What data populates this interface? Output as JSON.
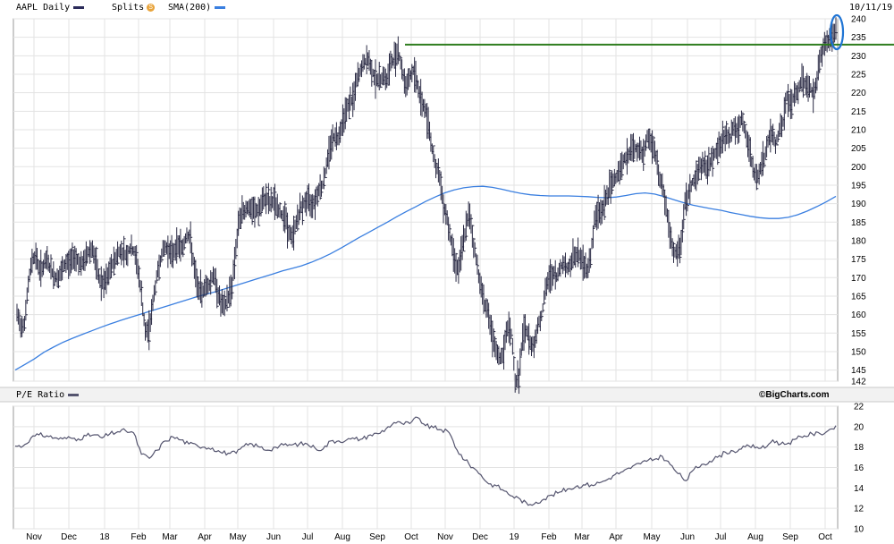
{
  "header": {
    "ticker_label": "AAPL Daily",
    "ticker_color": "#2b2b5a",
    "splits_label": "Splits",
    "splits_icon": "splits-s-icon",
    "sma_label": "SMA(200)",
    "sma_color": "#3a7fe0",
    "date": "10/11/19"
  },
  "lower_panel": {
    "label": "P/E Ratio",
    "color": "#55556f",
    "credit": "©BigCharts.com"
  },
  "chart_data": [
    {
      "type": "ohlc",
      "title": "AAPL Daily",
      "ylim": [
        142,
        240
      ],
      "y_ticks": [
        142,
        145,
        150,
        155,
        160,
        165,
        170,
        175,
        180,
        185,
        190,
        195,
        200,
        205,
        210,
        215,
        220,
        225,
        230,
        235,
        240
      ],
      "grid": true,
      "price_color": "#2a2a44",
      "close": [
        160,
        157,
        158,
        168,
        175,
        176,
        172,
        173,
        175,
        172,
        170,
        170,
        172,
        174,
        174,
        176,
        175,
        173,
        175,
        177,
        178,
        173,
        169,
        168,
        170,
        173,
        175,
        177,
        177,
        176,
        178,
        177,
        173,
        165,
        155,
        156,
        163,
        170,
        175,
        178,
        178,
        176,
        178,
        179,
        178,
        182,
        180,
        172,
        167,
        166,
        168,
        168,
        171,
        167,
        163,
        162,
        165,
        168,
        178,
        186,
        188,
        189,
        188,
        188,
        188,
        190,
        192,
        190,
        191,
        189,
        187,
        187,
        182,
        181,
        185,
        188,
        190,
        191,
        190,
        191,
        194,
        195,
        200,
        206,
        208,
        208,
        211,
        215,
        217,
        218,
        223,
        226,
        228,
        229,
        226,
        224,
        223,
        225,
        223,
        228,
        229,
        232,
        226,
        222,
        224,
        226,
        223,
        218,
        216,
        212,
        205,
        200,
        197,
        190,
        186,
        180,
        175,
        172,
        178,
        184,
        187,
        179,
        173,
        167,
        163,
        160,
        153,
        150,
        148,
        150,
        157,
        155,
        142,
        143,
        154,
        156,
        152,
        152,
        157,
        160,
        166,
        170,
        171,
        170,
        173,
        174,
        172,
        175,
        176,
        176,
        174,
        172,
        176,
        185,
        188,
        188,
        191,
        194,
        196,
        198,
        200,
        202,
        203,
        205,
        205,
        204,
        203,
        208,
        207,
        204,
        198,
        195,
        189,
        181,
        177,
        176,
        180,
        190,
        193,
        196,
        197,
        200,
        201,
        199,
        202,
        204,
        205,
        207,
        209,
        208,
        211,
        209,
        213,
        209,
        205,
        200,
        196,
        200,
        202,
        207,
        209,
        206,
        210,
        212,
        219,
        217,
        219,
        220,
        224,
        222,
        222,
        219,
        224,
        230,
        233,
        234,
        235,
        237
      ]
    },
    {
      "type": "line",
      "name": "SMA(200)",
      "ylim": [
        142,
        240
      ],
      "values": [
        145,
        146.5,
        148,
        149.8,
        151.2,
        152.5,
        153.6,
        154.6,
        155.6,
        156.6,
        157.5,
        158.4,
        159.2,
        160,
        160.8,
        161.6,
        162.4,
        163.2,
        164,
        164.8,
        165.5,
        166.2,
        167,
        167.8,
        168.6,
        169.4,
        170.2,
        171,
        171.8,
        172.5,
        173.2,
        174.1,
        175.2,
        176.4,
        177.8,
        179.3,
        180.8,
        182.2,
        183.6,
        185,
        186.5,
        187.9,
        189.2,
        190.6,
        191.8,
        192.9,
        193.7,
        194.3,
        194.6,
        194.7,
        194.4,
        193.9,
        193.3,
        192.8,
        192.4,
        192.2,
        192.1,
        192.1,
        192.1,
        192,
        191.9,
        191.7,
        191.6,
        191.8,
        192.2,
        192.7,
        192.9,
        192.6,
        191.9,
        191.1,
        190.3,
        189.6,
        189.1,
        188.6,
        188.2,
        187.6,
        187.1,
        186.6,
        186.2,
        186,
        186,
        186.3,
        187,
        188,
        189.2,
        190.5,
        192
      ]
    },
    {
      "type": "line",
      "name": "P/E Ratio",
      "ylim": [
        10,
        22
      ],
      "y_ticks": [
        10,
        12,
        14,
        16,
        18,
        20,
        22
      ],
      "grid": true,
      "values": [
        18.1,
        18.1,
        18.9,
        19.2,
        19.1,
        18.9,
        18.8,
        18.9,
        18.8,
        19.1,
        19.2,
        18.9,
        19.3,
        19.5,
        19.6,
        19.4,
        17.3,
        16.9,
        17.7,
        18.6,
        19,
        18.7,
        18.3,
        18.2,
        18,
        17.9,
        17.5,
        17.4,
        17.4,
        18.1,
        18.3,
        18,
        17.7,
        18,
        18.2,
        18.2,
        18.3,
        18.3,
        17.9,
        17.8,
        18.6,
        18.6,
        18.7,
        18.8,
        18.8,
        19.2,
        19.3,
        19.8,
        20.4,
        20.3,
        20.3,
        20.9,
        20.1,
        19.9,
        19.7,
        19.4,
        17.7,
        16.7,
        16,
        15.3,
        14.4,
        14.2,
        13.7,
        13.2,
        12.9,
        12.3,
        12.6,
        12.9,
        13.3,
        13.6,
        13.9,
        14.1,
        14.3,
        14.3,
        14.5,
        14.8,
        15.3,
        15.6,
        15.9,
        16.4,
        16.6,
        16.8,
        17.1,
        16.3,
        15.4,
        14.7,
        15.8,
        16.3,
        16.6,
        17,
        17.5,
        17.6,
        17.8,
        18.1,
        18,
        17.9,
        18.7,
        18.3,
        18.4,
        18.8,
        19.1,
        19.3,
        19.3,
        19.6,
        20.1
      ]
    }
  ],
  "x_axis": {
    "labels": [
      "Nov",
      "Dec",
      "18",
      "Feb",
      "Mar",
      "Apr",
      "May",
      "Jun",
      "Jul",
      "Aug",
      "Sep",
      "Oct",
      "Nov",
      "Dec",
      "19",
      "Feb",
      "Mar",
      "Apr",
      "May",
      "Jun",
      "Jul",
      "Aug",
      "Sep",
      "Oct"
    ]
  },
  "annotations": {
    "resistance_value": 233,
    "resistance_color": "#2e7d1e",
    "highlight_color": "#1f74d4"
  }
}
